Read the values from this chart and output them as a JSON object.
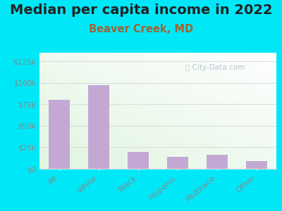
{
  "title": "Median per capita income in 2022",
  "subtitle": "Beaver Creek, MD",
  "categories": [
    "All",
    "White",
    "Black",
    "Hispanic",
    "Multirace",
    "Other"
  ],
  "values": [
    80000,
    97000,
    20000,
    14000,
    16000,
    9000
  ],
  "bar_color": "#c4a8d4",
  "background_outer": "#00e8f8",
  "ylim": [
    0,
    135000
  ],
  "yticks": [
    0,
    25000,
    50000,
    75000,
    100000,
    125000
  ],
  "ytick_labels": [
    "$0",
    "$25k",
    "$50k",
    "$75k",
    "$100k",
    "$125k"
  ],
  "title_fontsize": 14,
  "subtitle_fontsize": 10.5,
  "title_color": "#222222",
  "subtitle_color": "#996633",
  "tick_color": "#888888",
  "grid_color": "#dddddd",
  "watermark": "City-Data.com"
}
